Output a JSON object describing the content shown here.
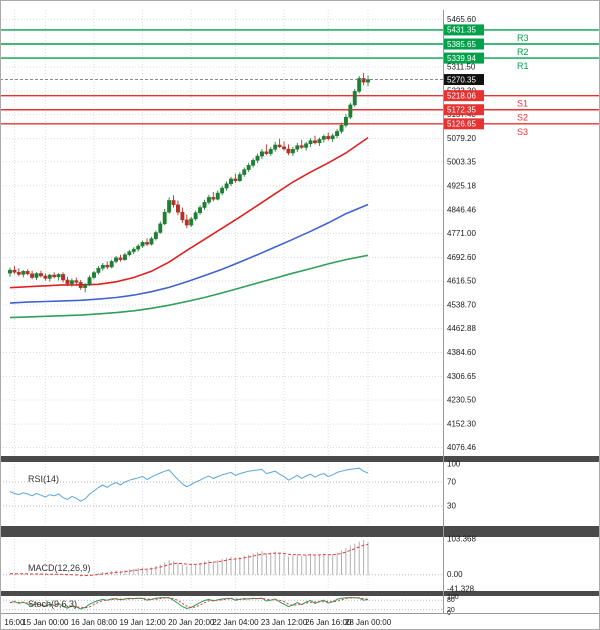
{
  "chart_data": {
    "type": "candlestick",
    "current_price": 5270.35,
    "price_axis": {
      "range": [
        4052,
        5496
      ],
      "ticks": [
        "5465.60",
        "5311.50",
        "5233.30",
        "5157.40",
        "5079.20",
        "5003.35",
        "4925.18",
        "4846.46",
        "4771.00",
        "4692.60",
        "4616.50",
        "4538.70",
        "4462.88",
        "4384.60",
        "4306.65",
        "4230.50",
        "4152.30",
        "4076.46"
      ]
    },
    "time_axis": {
      "labels": [
        {
          "text": "16:00",
          "i": 1
        },
        {
          "text": "15 Jan 00:00",
          "i": 8
        },
        {
          "text": "16 Jan 08:00",
          "i": 19
        },
        {
          "text": "19 Jan 12:00",
          "i": 30
        },
        {
          "text": "20 Jan 20:00",
          "i": 41
        },
        {
          "text": "22 Jan 04:00",
          "i": 51
        },
        {
          "text": "23 Jan 12:00",
          "i": 62
        },
        {
          "text": "26 Jan 16:00",
          "i": 72
        },
        {
          "text": "28 Jan 00:00",
          "i": 81
        }
      ]
    },
    "pivots": {
      "resistance": [
        {
          "name": "R3",
          "value": 5431.35
        },
        {
          "name": "R2",
          "value": 5385.65
        },
        {
          "name": "R1",
          "value": 5339.94
        }
      ],
      "support": [
        {
          "name": "S1",
          "value": 5218.06
        },
        {
          "name": "S2",
          "value": 5172.35
        },
        {
          "name": "S3",
          "value": 5126.65
        }
      ]
    },
    "candles": [
      [
        4642,
        4660,
        4630,
        4652
      ],
      [
        4652,
        4665,
        4640,
        4645
      ],
      [
        4645,
        4658,
        4632,
        4638
      ],
      [
        4638,
        4652,
        4628,
        4648
      ],
      [
        4648,
        4655,
        4635,
        4640
      ],
      [
        4640,
        4650,
        4622,
        4628
      ],
      [
        4628,
        4645,
        4620,
        4641
      ],
      [
        4641,
        4650,
        4628,
        4633
      ],
      [
        4633,
        4642,
        4618,
        4625
      ],
      [
        4625,
        4640,
        4615,
        4636
      ],
      [
        4636,
        4645,
        4625,
        4630
      ],
      [
        4630,
        4642,
        4618,
        4638
      ],
      [
        4638,
        4645,
        4612,
        4620
      ],
      [
        4620,
        4630,
        4600,
        4608
      ],
      [
        4608,
        4625,
        4598,
        4618
      ],
      [
        4618,
        4628,
        4605,
        4612
      ],
      [
        4612,
        4620,
        4588,
        4595
      ],
      [
        4595,
        4610,
        4580,
        4604
      ],
      [
        4604,
        4635,
        4600,
        4628
      ],
      [
        4628,
        4650,
        4622,
        4644
      ],
      [
        4644,
        4665,
        4638,
        4658
      ],
      [
        4658,
        4675,
        4650,
        4668
      ],
      [
        4668,
        4680,
        4655,
        4662
      ],
      [
        4662,
        4686,
        4658,
        4680
      ],
      [
        4680,
        4698,
        4674,
        4692
      ],
      [
        4692,
        4702,
        4680,
        4686
      ],
      [
        4686,
        4708,
        4682,
        4702
      ],
      [
        4702,
        4718,
        4696,
        4712
      ],
      [
        4712,
        4726,
        4704,
        4720
      ],
      [
        4720,
        4736,
        4712,
        4730
      ],
      [
        4730,
        4748,
        4724,
        4742
      ],
      [
        4742,
        4755,
        4730,
        4736
      ],
      [
        4736,
        4760,
        4732,
        4754
      ],
      [
        4754,
        4780,
        4748,
        4774
      ],
      [
        4774,
        4810,
        4770,
        4802
      ],
      [
        4802,
        4850,
        4798,
        4840
      ],
      [
        4840,
        4888,
        4835,
        4878
      ],
      [
        4878,
        4895,
        4855,
        4864
      ],
      [
        4864,
        4878,
        4830,
        4840
      ],
      [
        4840,
        4855,
        4805,
        4815
      ],
      [
        4815,
        4832,
        4788,
        4798
      ],
      [
        4798,
        4825,
        4792,
        4818
      ],
      [
        4818,
        4845,
        4812,
        4838
      ],
      [
        4838,
        4862,
        4832,
        4855
      ],
      [
        4855,
        4880,
        4848,
        4872
      ],
      [
        4872,
        4896,
        4865,
        4888
      ],
      [
        4888,
        4905,
        4875,
        4882
      ],
      [
        4882,
        4910,
        4878,
        4902
      ],
      [
        4902,
        4925,
        4895,
        4918
      ],
      [
        4918,
        4940,
        4910,
        4932
      ],
      [
        4932,
        4955,
        4925,
        4948
      ],
      [
        4948,
        4965,
        4935,
        4942
      ],
      [
        4942,
        4970,
        4938,
        4962
      ],
      [
        4962,
        4985,
        4955,
        4978
      ],
      [
        4978,
        5000,
        4970,
        4992
      ],
      [
        4992,
        5015,
        4985,
        5008
      ],
      [
        5008,
        5030,
        5000,
        5022
      ],
      [
        5022,
        5045,
        5012,
        5036
      ],
      [
        5036,
        5060,
        5025,
        5030
      ],
      [
        5030,
        5052,
        5022,
        5044
      ],
      [
        5044,
        5068,
        5036,
        5058
      ],
      [
        5058,
        5078,
        5048,
        5052
      ],
      [
        5052,
        5070,
        5040,
        5045
      ],
      [
        5045,
        5060,
        5025,
        5032
      ],
      [
        5032,
        5052,
        5022,
        5044
      ],
      [
        5044,
        5065,
        5035,
        5056
      ],
      [
        5056,
        5075,
        5045,
        5050
      ],
      [
        5050,
        5068,
        5040,
        5062
      ],
      [
        5062,
        5080,
        5052,
        5072
      ],
      [
        5072,
        5088,
        5060,
        5065
      ],
      [
        5065,
        5082,
        5055,
        5076
      ],
      [
        5076,
        5092,
        5066,
        5086
      ],
      [
        5086,
        5098,
        5072,
        5078
      ],
      [
        5078,
        5095,
        5068,
        5088
      ],
      [
        5088,
        5110,
        5080,
        5102
      ],
      [
        5102,
        5130,
        5095,
        5122
      ],
      [
        5122,
        5158,
        5115,
        5148
      ],
      [
        5148,
        5195,
        5142,
        5188
      ],
      [
        5188,
        5240,
        5182,
        5232
      ],
      [
        5232,
        5282,
        5226,
        5274
      ],
      [
        5274,
        5292,
        5252,
        5262
      ],
      [
        5262,
        5284,
        5248,
        5270.35
      ]
    ],
    "moving_averages": [
      {
        "name": "ma-slow-green",
        "color": "#2fa05a",
        "points": [
          [
            0,
            4498
          ],
          [
            4,
            4500
          ],
          [
            8,
            4502
          ],
          [
            12,
            4504
          ],
          [
            16,
            4506
          ],
          [
            20,
            4510
          ],
          [
            24,
            4514
          ],
          [
            28,
            4520
          ],
          [
            32,
            4528
          ],
          [
            36,
            4538
          ],
          [
            40,
            4550
          ],
          [
            44,
            4563
          ],
          [
            48,
            4578
          ],
          [
            52,
            4594
          ],
          [
            56,
            4610
          ],
          [
            60,
            4626
          ],
          [
            64,
            4642
          ],
          [
            68,
            4657
          ],
          [
            72,
            4672
          ],
          [
            76,
            4686
          ],
          [
            81,
            4700
          ]
        ]
      },
      {
        "name": "ma-medium-blue",
        "color": "#3f63d2",
        "points": [
          [
            0,
            4545
          ],
          [
            4,
            4548
          ],
          [
            8,
            4550
          ],
          [
            12,
            4552
          ],
          [
            16,
            4554
          ],
          [
            20,
            4558
          ],
          [
            24,
            4563
          ],
          [
            28,
            4571
          ],
          [
            32,
            4582
          ],
          [
            36,
            4596
          ],
          [
            40,
            4614
          ],
          [
            44,
            4634
          ],
          [
            48,
            4655
          ],
          [
            52,
            4678
          ],
          [
            56,
            4702
          ],
          [
            60,
            4727
          ],
          [
            64,
            4752
          ],
          [
            68,
            4778
          ],
          [
            72,
            4805
          ],
          [
            76,
            4835
          ],
          [
            81,
            4865
          ]
        ]
      },
      {
        "name": "ma-fast-red",
        "color": "#e02020",
        "points": [
          [
            0,
            4595
          ],
          [
            4,
            4598
          ],
          [
            8,
            4601
          ],
          [
            12,
            4604
          ],
          [
            16,
            4604
          ],
          [
            20,
            4606
          ],
          [
            24,
            4614
          ],
          [
            28,
            4628
          ],
          [
            32,
            4648
          ],
          [
            36,
            4678
          ],
          [
            40,
            4716
          ],
          [
            44,
            4752
          ],
          [
            48,
            4788
          ],
          [
            52,
            4824
          ],
          [
            56,
            4862
          ],
          [
            60,
            4900
          ],
          [
            64,
            4938
          ],
          [
            68,
            4970
          ],
          [
            72,
            5000
          ],
          [
            76,
            5032
          ],
          [
            81,
            5082
          ]
        ]
      }
    ],
    "panels": {
      "rsi": {
        "label": "RSI(14)",
        "range": [
          0,
          100
        ],
        "dotted": [
          70,
          30
        ],
        "ticks": [
          {
            "text": "100",
            "v": 100
          },
          {
            "text": "70",
            "v": 70
          },
          {
            "text": "30",
            "v": 30
          }
        ],
        "values": [
          54,
          51,
          49,
          52,
          50,
          47,
          51,
          48,
          45,
          49,
          47,
          50,
          44,
          41,
          46,
          43,
          38,
          42,
          50,
          55,
          61,
          65,
          61,
          66,
          69,
          65,
          70,
          73,
          75,
          77,
          79,
          74,
          78,
          82,
          85,
          88,
          90,
          82,
          74,
          67,
          62,
          66,
          70,
          73,
          77,
          80,
          76,
          79,
          82,
          84,
          86,
          81,
          84,
          86,
          88,
          89,
          90,
          91,
          84,
          86,
          88,
          83,
          79,
          73,
          77,
          81,
          76,
          80,
          83,
          78,
          82,
          84,
          79,
          82,
          86,
          88,
          90,
          91,
          92,
          93,
          88,
          85
        ]
      },
      "macd": {
        "label": "MACD(12,26,9)",
        "range": [
          -41.328,
          103.368
        ],
        "ticks": [
          {
            "text": "103.368",
            "v": 103.368
          },
          {
            "text": "0.00",
            "v": 0
          },
          {
            "text": "-41.328",
            "v": -41.328
          }
        ],
        "hist": [
          3,
          2,
          2,
          3,
          2,
          1,
          2,
          1,
          0,
          1,
          1,
          2,
          0,
          -2,
          -1,
          -2,
          -5,
          -4,
          -1,
          2,
          5,
          8,
          7,
          10,
          12,
          10,
          13,
          15,
          17,
          19,
          21,
          18,
          21,
          25,
          30,
          36,
          42,
          40,
          35,
          30,
          26,
          28,
          31,
          34,
          38,
          42,
          39,
          42,
          46,
          49,
          52,
          48,
          51,
          55,
          58,
          62,
          65,
          68,
          62,
          64,
          67,
          62,
          58,
          52,
          55,
          59,
          54,
          57,
          60,
          55,
          58,
          61,
          56,
          58,
          64,
          70,
          77,
          84,
          90,
          96,
          100,
          95
        ]
      },
      "stoch": {
        "label": "Stoch(9,6,3)",
        "range": [
          0,
          100
        ],
        "dotted": [
          80,
          20
        ],
        "ticks": [
          {
            "text": "100",
            "v": 100
          },
          {
            "text": "80",
            "v": 80
          },
          {
            "text": "20",
            "v": 20
          },
          {
            "text": "0",
            "v": 0
          }
        ],
        "k": [
          65,
          72,
          60,
          68,
          55,
          48,
          58,
          50,
          42,
          55,
          48,
          60,
          40,
          30,
          45,
          38,
          25,
          35,
          55,
          68,
          78,
          85,
          80,
          88,
          90,
          82,
          88,
          92,
          90,
          93,
          91,
          80,
          85,
          92,
          95,
          96,
          95,
          80,
          60,
          40,
          28,
          35,
          50,
          65,
          78,
          85,
          75,
          82,
          88,
          90,
          92,
          80,
          85,
          90,
          88,
          92,
          90,
          93,
          75,
          80,
          88,
          70,
          55,
          40,
          50,
          65,
          52,
          68,
          78,
          60,
          72,
          80,
          62,
          70,
          85,
          92,
          95,
          96,
          95,
          94,
          80,
          85
        ]
      }
    },
    "colors": {
      "up": "#1e7e34",
      "down": "#b33226",
      "grid": "#dcdcdc",
      "panel_dotted": "#b8b8b8",
      "resistance": "#00a14b",
      "support": "#e63232",
      "current_badge": "#111111",
      "separator": "#4a4a4a",
      "rsi": "#5aa7dc",
      "macd_hist": "#b0b0b0",
      "macd_signal": "#e03a3a",
      "stoch_k": "#2e9e5b",
      "stoch_d": "#e03a3a"
    }
  }
}
